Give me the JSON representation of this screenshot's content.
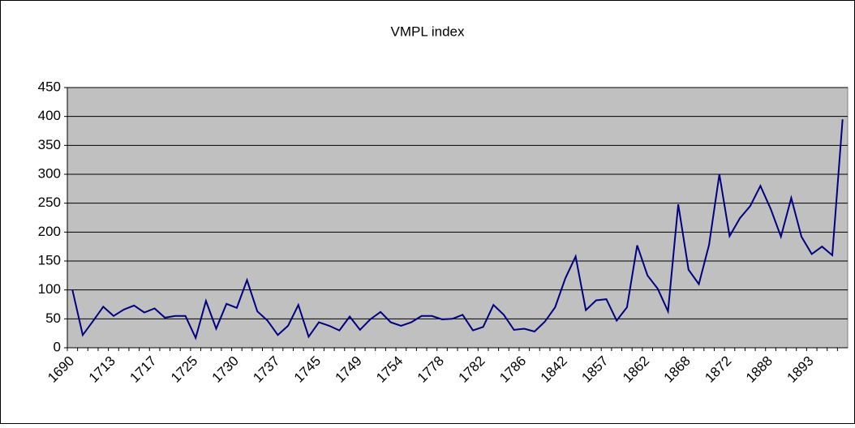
{
  "chart_data": {
    "type": "line",
    "title": "VMPL index",
    "categories": [
      "1690",
      null,
      null,
      null,
      "1713",
      null,
      null,
      null,
      "1717",
      null,
      null,
      null,
      "1725",
      null,
      null,
      null,
      "1730",
      null,
      null,
      null,
      "1737",
      null,
      null,
      null,
      "1745",
      null,
      null,
      null,
      "1749",
      null,
      null,
      null,
      "1754",
      null,
      null,
      null,
      "1778",
      null,
      null,
      null,
      "1782",
      null,
      null,
      null,
      "1786",
      null,
      null,
      null,
      "1842",
      null,
      null,
      null,
      "1857",
      null,
      null,
      null,
      "1862",
      null,
      null,
      null,
      "1868",
      null,
      null,
      null,
      "1872",
      null,
      null,
      null,
      "1888",
      null,
      null,
      null,
      "1893",
      null,
      null,
      null
    ],
    "series": [
      {
        "name": "VMPL index",
        "color": "#000080",
        "values": [
          100,
          22,
          46,
          71,
          55,
          66,
          73,
          61,
          68,
          52,
          55,
          55,
          17,
          81,
          33,
          76,
          69,
          117,
          63,
          47,
          22,
          38,
          74,
          19,
          44,
          38,
          30,
          54,
          31,
          49,
          62,
          44,
          38,
          44,
          55,
          55,
          49,
          50,
          57,
          30,
          36,
          74,
          57,
          31,
          33,
          28,
          45,
          70,
          120,
          158,
          65,
          82,
          84,
          47,
          70,
          177,
          125,
          102,
          63,
          248,
          135,
          110,
          178,
          300,
          193,
          224,
          245,
          280,
          240,
          192,
          259,
          192,
          162,
          175,
          160,
          395
        ]
      }
    ],
    "ylim": [
      0,
      450
    ],
    "yticks": [
      0,
      50,
      100,
      150,
      200,
      250,
      300,
      350,
      400,
      450
    ],
    "grid": true
  }
}
